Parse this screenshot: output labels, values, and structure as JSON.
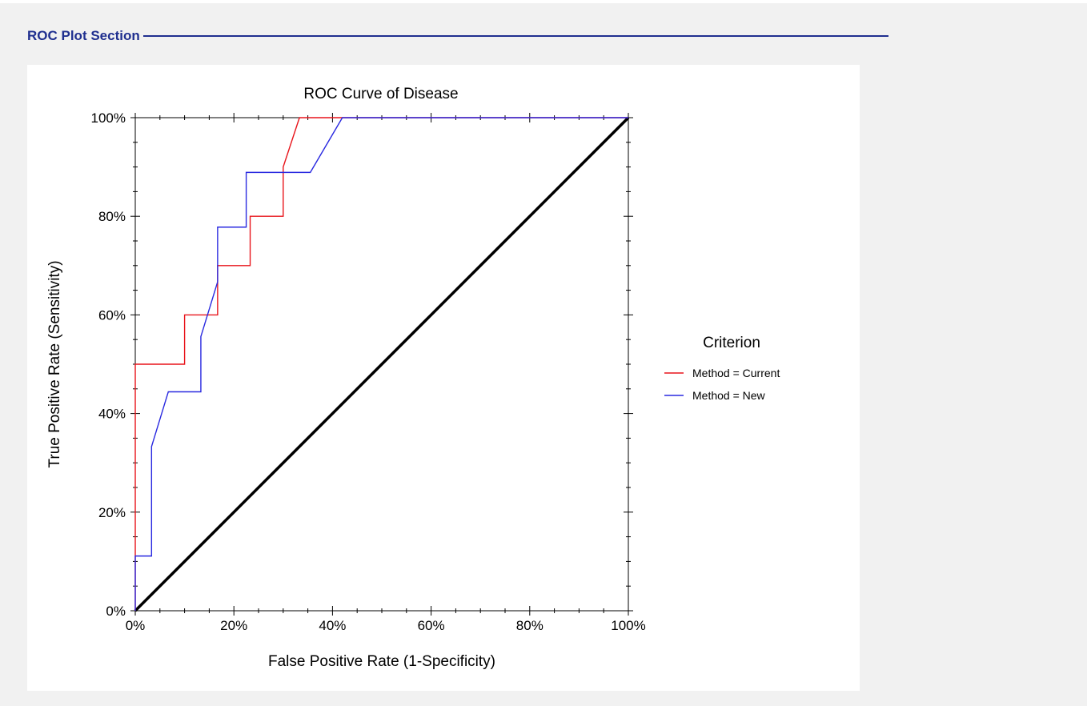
{
  "section": {
    "title": "ROC Plot Section"
  },
  "chart_data": {
    "type": "line",
    "title": "ROC Curve of Disease",
    "xlabel": "False Positive Rate (1-Specificity)",
    "ylabel": "True Positive Rate (Sensitivity)",
    "xlim": [
      0,
      100
    ],
    "ylim": [
      0,
      100
    ],
    "x_ticks": [
      "0%",
      "20%",
      "40%",
      "60%",
      "80%",
      "100%"
    ],
    "y_ticks": [
      "0%",
      "20%",
      "40%",
      "60%",
      "80%",
      "100%"
    ],
    "grid": false,
    "legend": {
      "title": "Criterion",
      "placement": "right"
    },
    "series": [
      {
        "name": "Method = Current",
        "color": "#e8141b",
        "x": [
          0,
          0,
          0,
          10,
          10,
          16.7,
          16.7,
          23.3,
          23.3,
          30,
          30,
          33.3,
          40,
          100
        ],
        "y": [
          0,
          10,
          50,
          50,
          60,
          60,
          70,
          70,
          80,
          80,
          90,
          100,
          100,
          100
        ]
      },
      {
        "name": "Method = New",
        "color": "#2a2ae0",
        "x": [
          0,
          0,
          3.3,
          3.3,
          6.7,
          13.3,
          13.3,
          16.7,
          16.7,
          22.5,
          22.5,
          35.5,
          42,
          100
        ],
        "y": [
          0,
          11.1,
          11.1,
          33.3,
          44.4,
          44.4,
          55.6,
          66.7,
          77.8,
          77.8,
          88.9,
          88.9,
          100,
          100
        ]
      }
    ],
    "reference_line": {
      "x": [
        0,
        100
      ],
      "y": [
        0,
        100
      ],
      "color": "#000000"
    }
  }
}
